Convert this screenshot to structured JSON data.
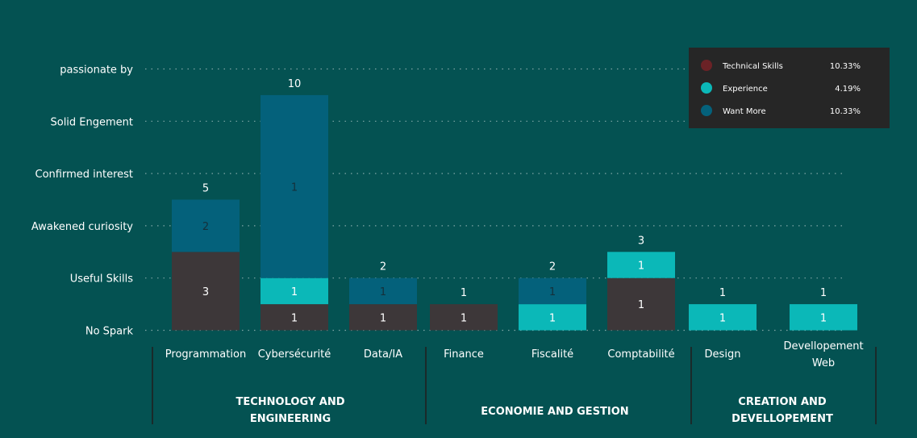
{
  "colors": {
    "background": "#045252",
    "technical_skills": "#3d3739",
    "experience": "#0bb8b8",
    "want_more": "#04617b",
    "legend_bg": "#262626",
    "legend_dot_technical": "#6b2226",
    "legend_dot_experience": "#0bb8b8",
    "legend_dot_want_more": "#04617b"
  },
  "legend": [
    {
      "name": "Technical Skills",
      "value": "10.33%"
    },
    {
      "name": "Experience",
      "value": "4.19%"
    },
    {
      "name": "Want More",
      "value": "10.33%"
    }
  ],
  "chart_data": {
    "type": "bar",
    "stacked": true,
    "y_ticks": [
      "No Spark",
      "Useful Skills",
      "Awakened curiosity",
      "Confirmed interest",
      "Solid Engement",
      "passionate by"
    ],
    "categories": [
      {
        "label": [
          "Programmation"
        ],
        "group": "TECHNOLOGY AND ENGINEERING"
      },
      {
        "label": [
          "Cybersécurité"
        ],
        "group": "TECHNOLOGY AND ENGINEERING"
      },
      {
        "label": [
          "Data/IA"
        ],
        "group": "TECHNOLOGY AND ENGINEERING"
      },
      {
        "label": [
          "Finance"
        ],
        "group": "ECONOMIE AND GESTION"
      },
      {
        "label": [
          "Fiscalité"
        ],
        "group": "ECONOMIE AND GESTION"
      },
      {
        "label": [
          "Comptabilité"
        ],
        "group": "ECONOMIE AND GESTION"
      },
      {
        "label": [
          "Design"
        ],
        "group": "CREATION AND DEVELLOPEMENT"
      },
      {
        "label": [
          "Devellopement",
          "Web"
        ],
        "group": "CREATION AND DEVELLOPEMENT"
      }
    ],
    "groups": [
      {
        "name": [
          "TECHNOLOGY AND",
          "ENGINEERING"
        ]
      },
      {
        "name": [
          "ECONOMIE AND GESTION"
        ]
      },
      {
        "name": [
          "CREATION AND",
          "DEVELLOPEMENT"
        ]
      }
    ],
    "totals": [
      "5",
      "10",
      "2",
      "1",
      "2",
      "3",
      "1",
      "1"
    ],
    "series": [
      {
        "name": "Technical Skills",
        "tops": [
          1.5,
          0.5,
          0.5,
          0.5,
          0,
          1,
          0,
          0
        ],
        "labels": [
          "3",
          "1",
          "1",
          "1",
          "",
          "1",
          "",
          ""
        ]
      },
      {
        "name": "Experience",
        "tops": [
          1.5,
          1,
          0.5,
          0.5,
          0.5,
          1.5,
          0.5,
          0.5
        ],
        "labels": [
          "",
          "1",
          "",
          "",
          "1",
          "1",
          "1",
          "1"
        ]
      },
      {
        "name": "Want More",
        "tops": [
          2.5,
          4.5,
          1,
          0.5,
          1,
          1.5,
          0.5,
          0.5
        ],
        "labels": [
          "2",
          "1",
          "1",
          "",
          "1",
          "",
          "",
          ""
        ]
      }
    ]
  }
}
